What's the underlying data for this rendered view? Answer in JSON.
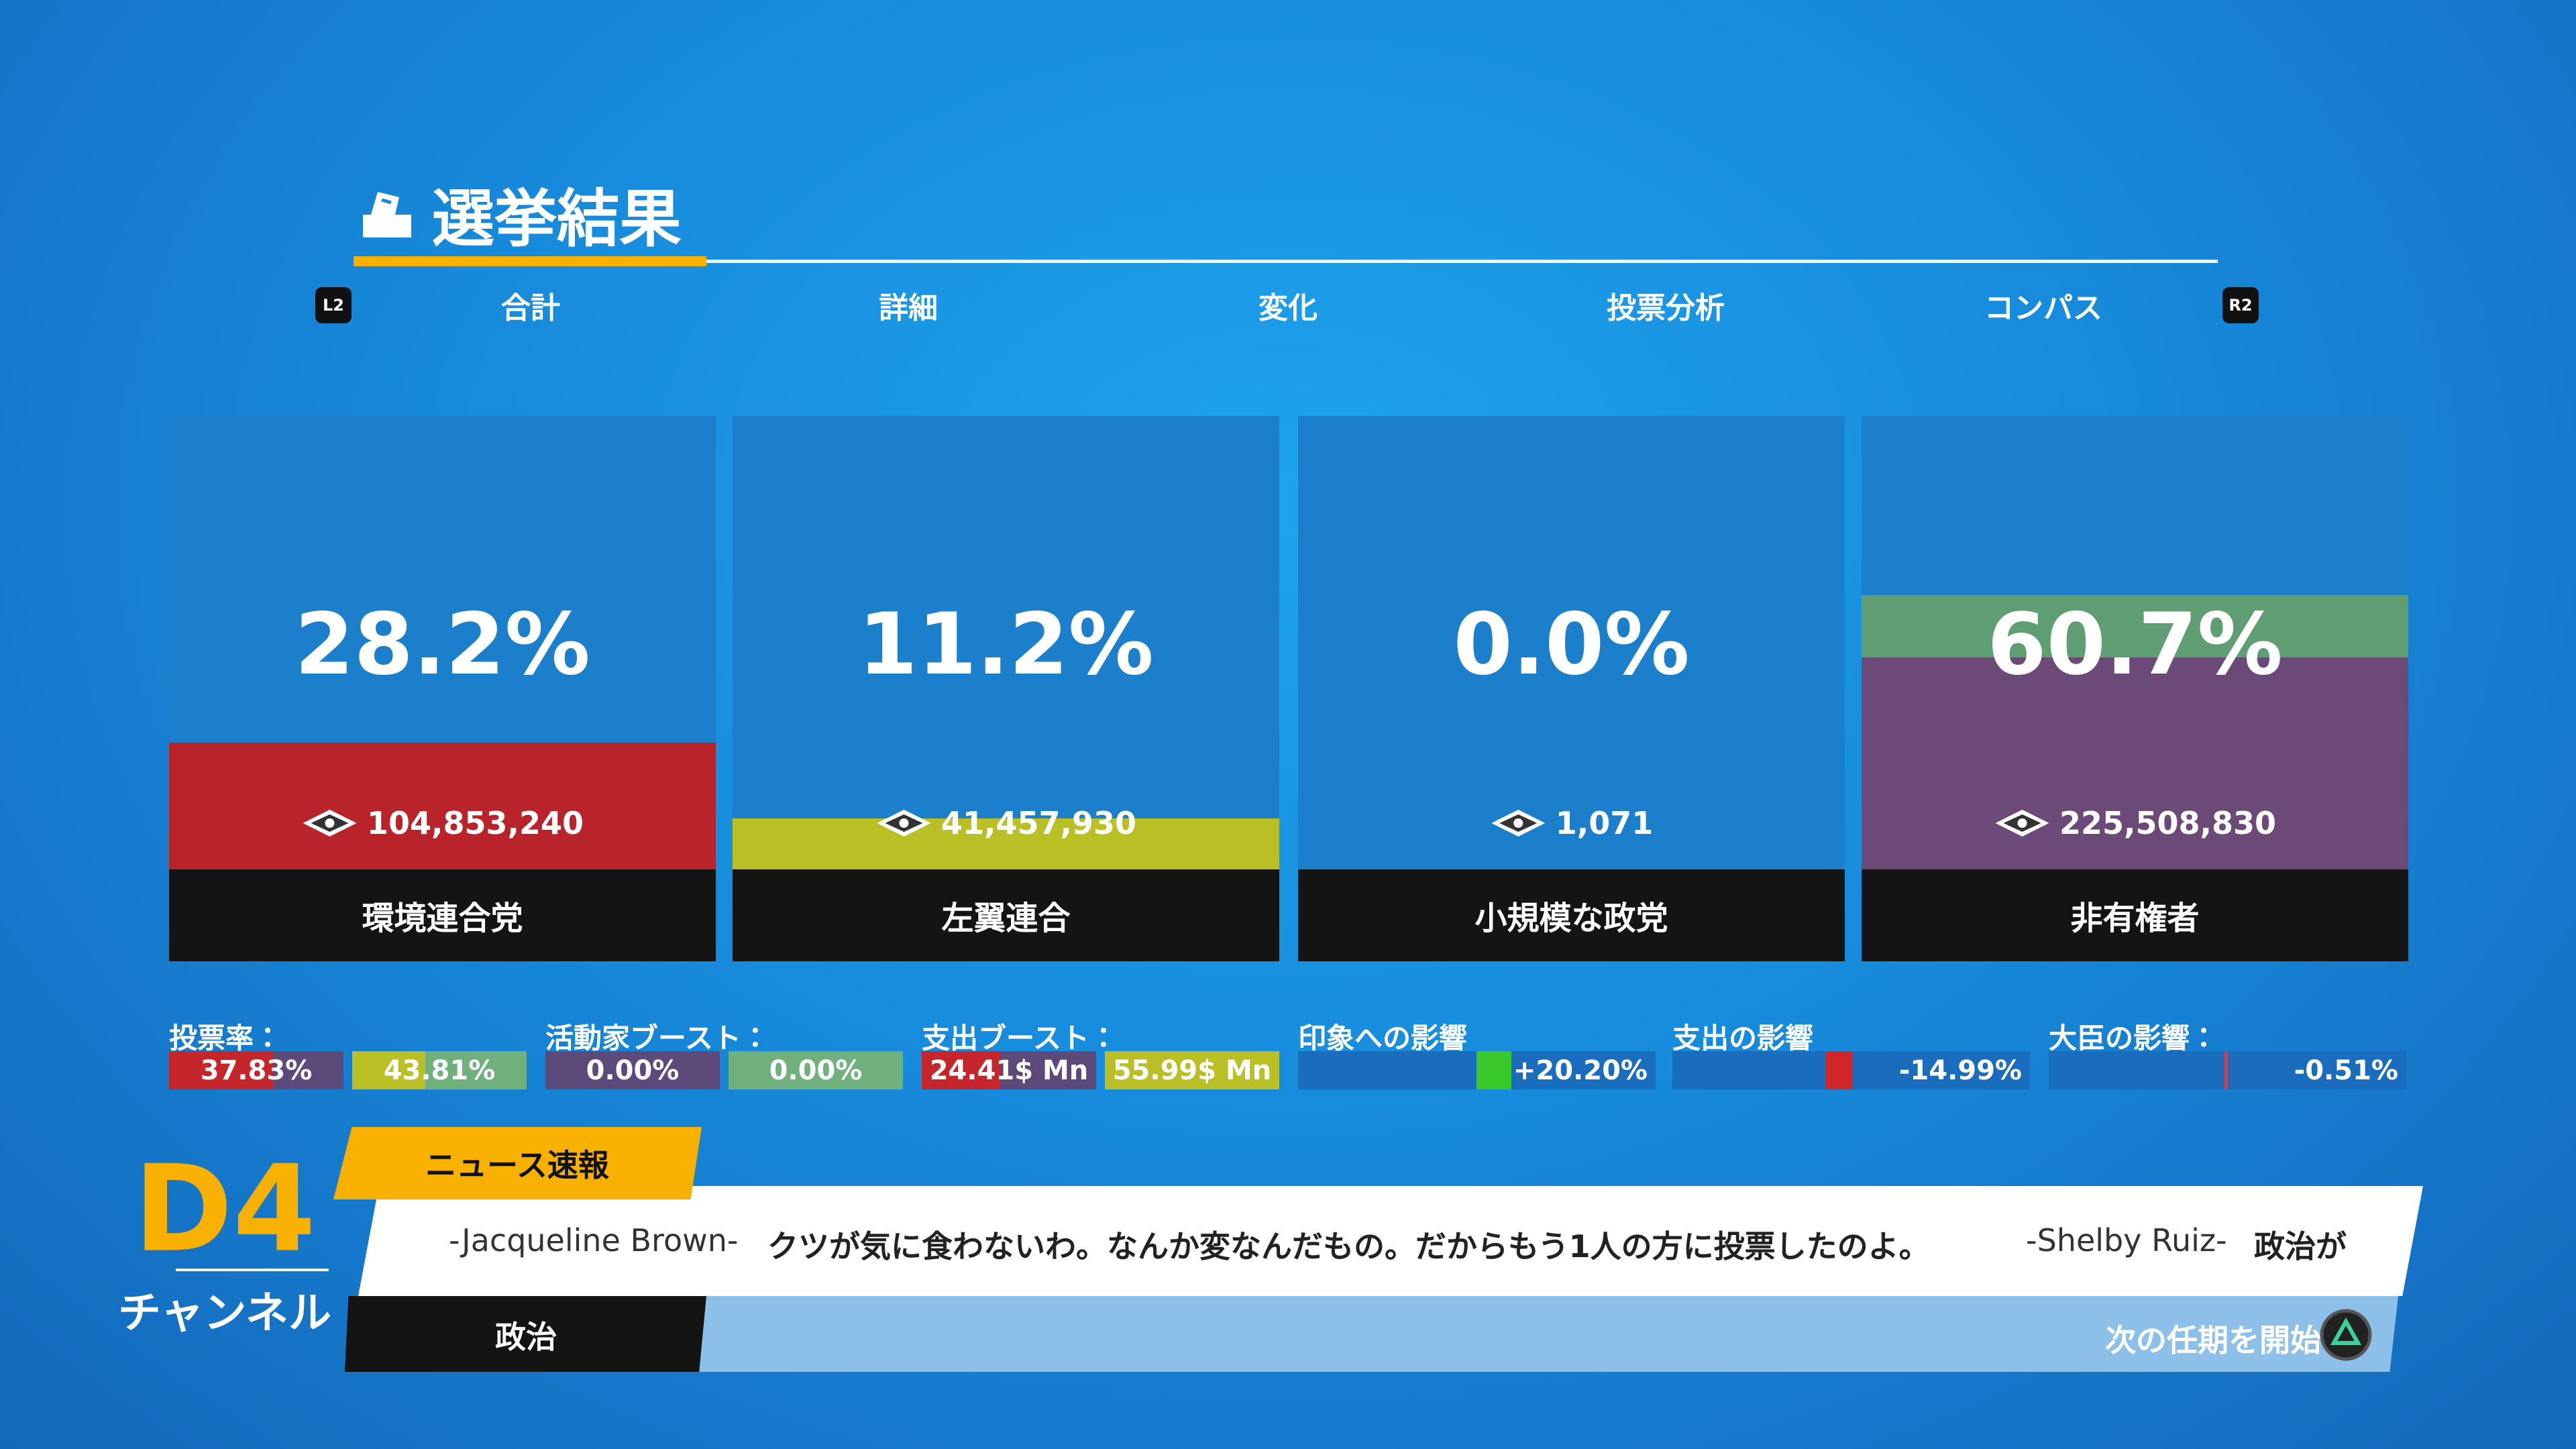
{
  "header": {
    "title": "選挙結果",
    "left_button": "L2",
    "right_button": "R2",
    "tabs": [
      "合計",
      "詳細",
      "変化",
      "投票分析",
      "コンパス"
    ]
  },
  "parties": [
    {
      "percent": "28.2%",
      "votes": "104,853,240",
      "name": "環境連合党"
    },
    {
      "percent": "11.2%",
      "votes": "41,457,930",
      "name": "左翼連合"
    },
    {
      "percent": "0.0%",
      "votes": "1,071",
      "name": "小規模な政党"
    },
    {
      "percent": "60.7%",
      "votes": "225,508,830",
      "name": "非有権者"
    }
  ],
  "stats": [
    {
      "label": "投票率：",
      "values": [
        "37.83%",
        "43.81%"
      ]
    },
    {
      "label": "活動家ブースト：",
      "values": [
        "0.00%",
        "0.00%"
      ]
    },
    {
      "label": "支出ブースト：",
      "values": [
        "24.41$ Mn",
        "55.99$ Mn"
      ]
    },
    {
      "label": "印象への影響",
      "values": [
        "+20.20%"
      ]
    },
    {
      "label": "支出の影響",
      "values": [
        "-14.99%"
      ]
    },
    {
      "label": "大臣の影響：",
      "values": [
        "-0.51%"
      ]
    }
  ],
  "news": {
    "channel_code": "D4",
    "channel_name": "チャンネル",
    "tag": "ニュース速報",
    "ticker": [
      "-Jacqueline Brown-",
      "クツが気に食わないわ。なんか変なんだもの。だからもう1人の方に投票したのよ。",
      "-Shelby Ruiz-",
      "政治が"
    ],
    "category": "政治",
    "action": "次の任期を開始"
  }
}
